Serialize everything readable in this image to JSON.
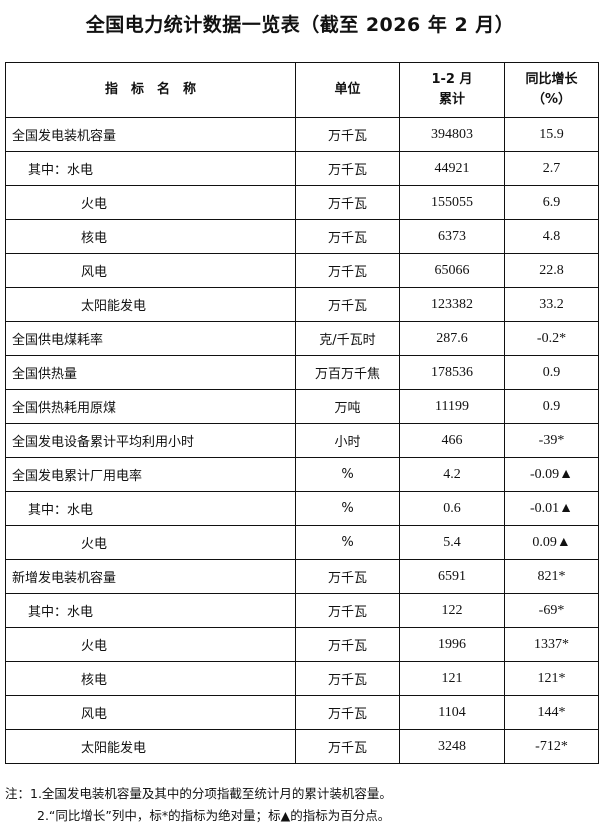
{
  "title": "全国电力统计数据一览表（截至 2026 年 2 月）",
  "headers": {
    "name": "指　标　名　称",
    "unit": "单位",
    "cumulative_line1": "1-2 月",
    "cumulative_line2": "累计",
    "growth_line1": "同比增长",
    "growth_line2": "（%）"
  },
  "rows": [
    {
      "name": "全国发电装机容量",
      "level": 0,
      "unit": "万千瓦",
      "value": "394803",
      "growth": "15.9"
    },
    {
      "name": "其中：水电",
      "level": 1,
      "unit": "万千瓦",
      "value": "44921",
      "growth": "2.7"
    },
    {
      "name": "火电",
      "level": 2,
      "unit": "万千瓦",
      "value": "155055",
      "growth": "6.9"
    },
    {
      "name": "核电",
      "level": 2,
      "unit": "万千瓦",
      "value": "6373",
      "growth": "4.8"
    },
    {
      "name": "风电",
      "level": 2,
      "unit": "万千瓦",
      "value": "65066",
      "growth": "22.8"
    },
    {
      "name": "太阳能发电",
      "level": 2,
      "unit": "万千瓦",
      "value": "123382",
      "growth": "33.2"
    },
    {
      "name": "全国供电煤耗率",
      "level": 0,
      "unit": "克/千瓦时",
      "value": "287.6",
      "growth": "-0.2*"
    },
    {
      "name": "全国供热量",
      "level": 0,
      "unit": "万百万千焦",
      "value": "178536",
      "growth": "0.9"
    },
    {
      "name": "全国供热耗用原煤",
      "level": 0,
      "unit": "万吨",
      "value": "11199",
      "growth": "0.9"
    },
    {
      "name": "全国发电设备累计平均利用小时",
      "level": 0,
      "unit": "小时",
      "value": "466",
      "growth": "-39*"
    },
    {
      "name": "全国发电累计厂用电率",
      "level": 0,
      "unit": "%",
      "value": "4.2",
      "growth": "-0.09▲"
    },
    {
      "name": "其中：水电",
      "level": 1,
      "unit": "%",
      "value": "0.6",
      "growth": "-0.01▲"
    },
    {
      "name": "火电",
      "level": 2,
      "unit": "%",
      "value": "5.4",
      "growth": "0.09▲"
    },
    {
      "name": "新增发电装机容量",
      "level": 0,
      "unit": "万千瓦",
      "value": "6591",
      "growth": "821*"
    },
    {
      "name": "其中：水电",
      "level": 1,
      "unit": "万千瓦",
      "value": "122",
      "growth": "-69*"
    },
    {
      "name": "火电",
      "level": 2,
      "unit": "万千瓦",
      "value": "1996",
      "growth": "1337*"
    },
    {
      "name": "核电",
      "level": 2,
      "unit": "万千瓦",
      "value": "121",
      "growth": "121*"
    },
    {
      "name": "风电",
      "level": 2,
      "unit": "万千瓦",
      "value": "1104",
      "growth": "144*"
    },
    {
      "name": "太阳能发电",
      "level": 2,
      "unit": "万千瓦",
      "value": "3248",
      "growth": "-712*"
    }
  ],
  "notes": {
    "line1": "注：1.全国发电装机容量及其中的分项指截至统计月的累计装机容量。",
    "line2": "2.“同比增长”列中，标*的指标为绝对量；标▲的指标为百分点。"
  }
}
